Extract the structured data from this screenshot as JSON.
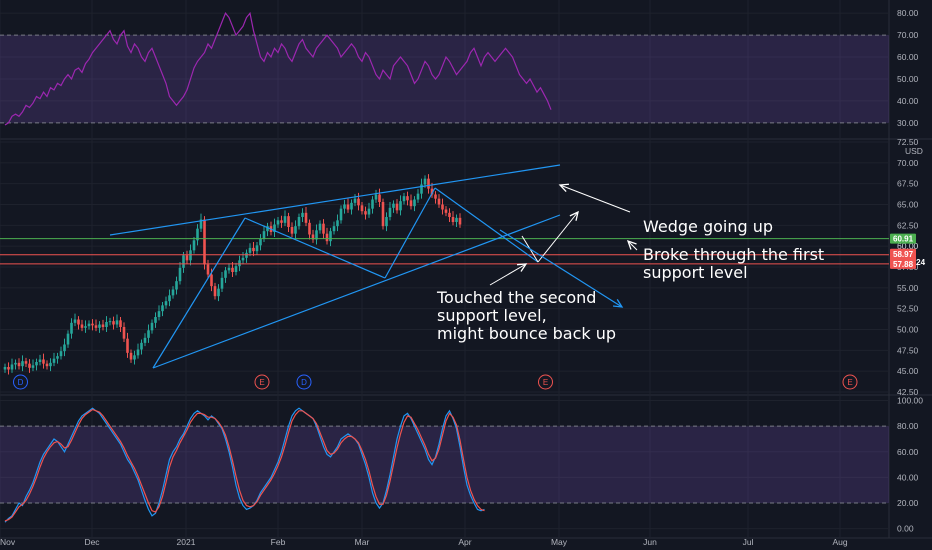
{
  "chart_data": [
    {
      "type": "line",
      "pane": "rsi",
      "y_ticks": [
        80,
        70,
        60,
        50,
        40,
        30
      ],
      "ylim": [
        24,
        86
      ],
      "bands": [
        70,
        30
      ],
      "band_fill": "#7e57c2",
      "line_color": "#9c27b0",
      "series": [
        {
          "x_start": 0,
          "step": 3.5,
          "values": [
            29,
            30,
            33,
            34,
            33,
            35,
            38,
            37,
            39,
            42,
            41,
            44,
            42,
            46,
            45,
            48,
            47,
            50,
            52,
            50,
            54,
            55,
            53,
            57,
            59,
            62,
            64,
            66,
            68,
            70,
            72,
            68,
            66,
            70,
            72,
            65,
            62,
            66,
            64,
            60,
            58,
            62,
            64,
            60,
            56,
            52,
            48,
            42,
            40,
            38,
            40,
            42,
            45,
            50,
            55,
            58,
            60,
            62,
            66,
            64,
            68,
            72,
            76,
            80,
            78,
            74,
            70,
            72,
            74,
            78,
            80,
            72,
            66,
            60,
            58,
            62,
            60,
            64,
            62,
            66,
            64,
            60,
            58,
            62,
            66,
            68,
            64,
            62,
            60,
            64,
            66,
            68,
            70,
            68,
            66,
            64,
            60,
            62,
            64,
            66,
            64,
            60,
            58,
            62,
            60,
            56,
            52,
            50,
            54,
            52,
            50,
            56,
            58,
            60,
            58,
            56,
            52,
            48,
            50,
            54,
            58,
            56,
            52,
            50,
            52,
            56,
            60,
            58,
            55,
            52,
            54,
            56,
            58,
            62,
            64,
            60,
            56,
            60,
            62,
            60,
            58,
            60,
            62,
            64,
            62,
            60,
            56,
            52,
            50,
            48,
            50,
            47,
            44,
            46,
            43,
            40,
            36
          ]
        }
      ]
    },
    {
      "type": "candlestick",
      "pane": "price",
      "currency": "USD",
      "y_ticks": [
        72.5,
        70.0,
        67.5,
        65.0,
        62.5,
        60.0,
        57.5,
        55.0,
        52.5,
        50.0,
        47.5,
        45.0,
        42.5
      ],
      "ylim": [
        42.5,
        72.5
      ],
      "up_color": "#26a69a",
      "down_color": "#ef5350",
      "x_start": 0,
      "step": 3.5,
      "closes": [
        45.5,
        45.2,
        45.8,
        46.0,
        45.6,
        46.2,
        45.9,
        45.4,
        45.7,
        46.1,
        46.4,
        45.9,
        45.6,
        46.0,
        46.5,
        46.8,
        47.4,
        48.2,
        49.5,
        50.8,
        51.2,
        50.6,
        50.2,
        50.4,
        50.7,
        50.5,
        50.2,
        50.6,
        50.3,
        50.9,
        51.0,
        50.6,
        51.1,
        50.3,
        48.9,
        47.2,
        46.4,
        46.9,
        47.6,
        48.4,
        49.0,
        49.9,
        50.8,
        51.5,
        52.2,
        52.9,
        53.4,
        54.1,
        54.8,
        55.8,
        57.4,
        58.9,
        58.3,
        59.5,
        60.7,
        62.1,
        63.2,
        57.8,
        56.6,
        55.2,
        54.0,
        54.9,
        56.2,
        57.1,
        57.4,
        56.9,
        57.6,
        58.3,
        58.6,
        59.2,
        59.8,
        59.4,
        60.1,
        60.9,
        61.8,
        62.4,
        61.7,
        62.6,
        63.1,
        62.8,
        63.6,
        62.3,
        61.5,
        62.4,
        63.5,
        64.0,
        62.8,
        61.4,
        60.8,
        61.9,
        62.7,
        61.5,
        60.6,
        61.8,
        62.4,
        63.1,
        64.5,
        65.0,
        64.4,
        65.2,
        65.7,
        64.9,
        64.2,
        63.8,
        64.5,
        65.6,
        66.2,
        65.3,
        62.4,
        63.5,
        64.6,
        65.1,
        64.3,
        65.4,
        66.0,
        65.5,
        64.8,
        65.6,
        66.3,
        67.4,
        68.1,
        66.9,
        66.2,
        65.7,
        65.0,
        64.4,
        64.0,
        63.5,
        62.9,
        63.4,
        62.6
      ],
      "notes": [
        "Wedge going up",
        "Broke through the first support level",
        "Touched the second support level, might bounce back up"
      ],
      "price_levels": [
        {
          "value": 60.91,
          "label": "60.91",
          "color": "#4caf50"
        },
        {
          "value": 58.97,
          "label": "58.97",
          "sub": "01:27:24",
          "color": "#ef5350"
        },
        {
          "value": 57.88,
          "label": "57.88",
          "color": "#ef5350"
        }
      ],
      "axis_labels_extra": [
        "60.00"
      ],
      "event_markers": [
        {
          "label": "D",
          "color": "#2962ff",
          "x": 1
        },
        {
          "label": "E",
          "color": "#ef5350",
          "x": 70
        },
        {
          "label": "D",
          "color": "#2962ff",
          "x": 82
        },
        {
          "label": "E",
          "color": "#ef5350",
          "x": 151
        },
        {
          "label": "E",
          "color": "#ef5350",
          "x": 238
        }
      ]
    },
    {
      "type": "line",
      "pane": "stochastic",
      "y_ticks": [
        100.0,
        80.0,
        60.0,
        40.0,
        20.0,
        0.0
      ],
      "ylim": [
        -5,
        102
      ],
      "bands": [
        80,
        20
      ],
      "band_fill": "#7e57c2",
      "series": [
        {
          "color": "#2196f3",
          "x_start": 0,
          "step": 3.5,
          "values": [
            5,
            8,
            10,
            15,
            20,
            18,
            25,
            30,
            36,
            44,
            52,
            58,
            62,
            66,
            70,
            68,
            64,
            60,
            66,
            72,
            78,
            84,
            88,
            90,
            92,
            94,
            92,
            90,
            86,
            82,
            78,
            74,
            70,
            66,
            60,
            54,
            50,
            44,
            38,
            30,
            22,
            15,
            10,
            12,
            20,
            30,
            42,
            54,
            60,
            64,
            70,
            74,
            80,
            86,
            90,
            92,
            90,
            88,
            85,
            88,
            86,
            82,
            78,
            70,
            60,
            48,
            34,
            24,
            18,
            15,
            16,
            18,
            22,
            28,
            32,
            36,
            40,
            46,
            52,
            60,
            70,
            80,
            88,
            92,
            94,
            92,
            90,
            88,
            86,
            80,
            72,
            64,
            58,
            56,
            60,
            64,
            70,
            72,
            74,
            72,
            70,
            66,
            58,
            50,
            40,
            28,
            20,
            16,
            20,
            30,
            42,
            56,
            70,
            80,
            88,
            90,
            86,
            80,
            74,
            68,
            62,
            54,
            50,
            56,
            66,
            78,
            88,
            92,
            86,
            78,
            64,
            48,
            34,
            26,
            20,
            15,
            14,
            15
          ]
        },
        {
          "color": "#ef5350",
          "x_start": 0,
          "step": 3.5,
          "values": [
            6,
            7,
            9,
            13,
            17,
            19,
            22,
            27,
            33,
            40,
            48,
            55,
            60,
            64,
            67,
            68,
            66,
            63,
            64,
            69,
            75,
            81,
            86,
            89,
            91,
            93,
            92,
            91,
            88,
            84,
            80,
            76,
            72,
            68,
            63,
            57,
            52,
            47,
            41,
            34,
            27,
            20,
            14,
            13,
            17,
            25,
            36,
            48,
            56,
            61,
            67,
            72,
            77,
            83,
            87,
            90,
            90,
            89,
            87,
            87,
            86,
            83,
            79,
            73,
            64,
            53,
            41,
            30,
            22,
            18,
            17,
            18,
            21,
            26,
            30,
            34,
            38,
            43,
            49,
            56,
            65,
            75,
            84,
            89,
            92,
            92,
            90,
            88,
            86,
            82,
            75,
            68,
            61,
            58,
            59,
            62,
            67,
            70,
            72,
            72,
            70,
            67,
            61,
            54,
            45,
            34,
            25,
            19,
            19,
            26,
            37,
            50,
            63,
            74,
            83,
            88,
            87,
            82,
            77,
            71,
            65,
            58,
            53,
            55,
            62,
            73,
            84,
            90,
            87,
            81,
            69,
            54,
            40,
            30,
            23,
            18,
            15,
            14
          ]
        }
      ]
    }
  ],
  "x_axis": {
    "labels": [
      "Nov",
      "Dec",
      "2021",
      "Feb",
      "Mar",
      "Apr",
      "May",
      "Jun",
      "Jul",
      "Aug"
    ]
  }
}
